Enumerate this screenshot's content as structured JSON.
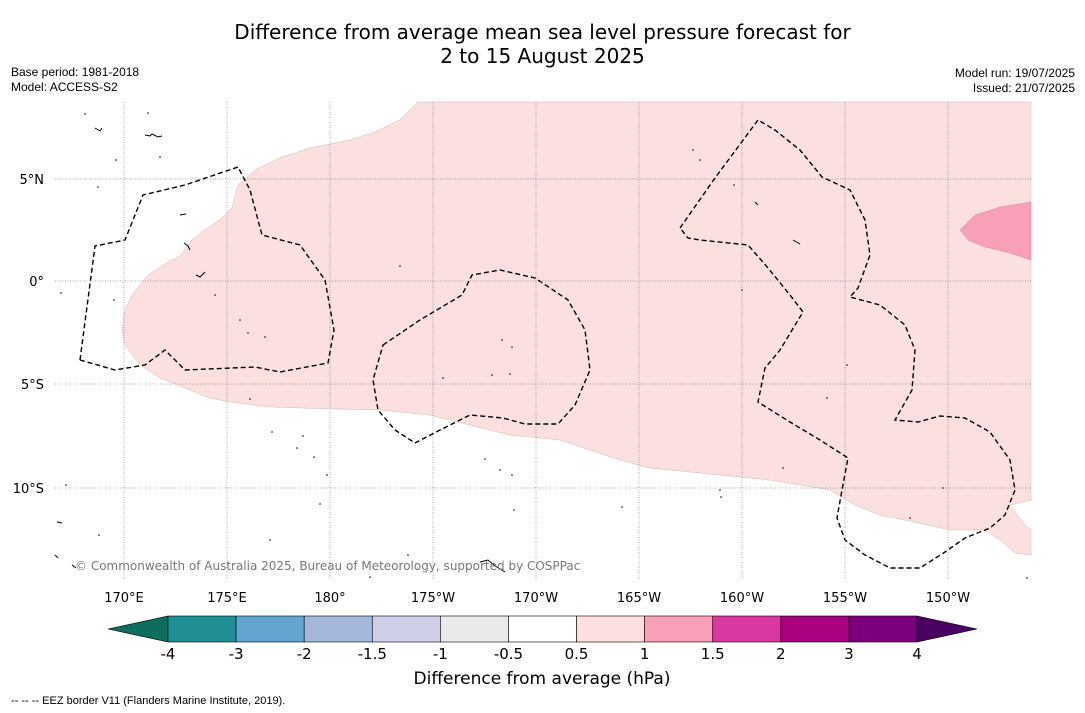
{
  "title": {
    "line1": "Difference from average mean sea level pressure forecast for",
    "line2": "2 to 15 August 2025"
  },
  "meta_left": {
    "base_period": "Base period: 1981-2018",
    "model": "Model: ACCESS-S2"
  },
  "meta_right": {
    "model_run": "Model run: 19/07/2025",
    "issued": "Issued: 21/07/2025"
  },
  "map": {
    "lat_labels": [
      "5°N",
      "0°",
      "5°S",
      "10°S"
    ],
    "lon_labels": [
      "170°E",
      "175°E",
      "180°",
      "175°W",
      "170°W",
      "165°W",
      "160°W",
      "155°W",
      "150°W"
    ],
    "copyright": "© Commonwealth of Australia 2025, Bureau of Meteorology, supported by COSPPac",
    "colors": {
      "anomaly_0_5_to_1": "#fce0df",
      "anomaly_1_to_1_5": "#f8a0b8",
      "eez_border": "#000000",
      "gridline": "#555555"
    }
  },
  "colorbar": {
    "title": "Difference from average (hPa)",
    "tick_labels": [
      "-4",
      "-3",
      "-2",
      "-1.5",
      "-1",
      "-0.5",
      "0.5",
      "1",
      "1.5",
      "2",
      "3",
      "4"
    ],
    "colors": [
      "#0e6d5e",
      "#1f8f95",
      "#62a5d0",
      "#a5b8dc",
      "#cfcfe8",
      "#eaeaea",
      "#ffffff",
      "#fce0df",
      "#f8a0b8",
      "#d838a0",
      "#a8007e",
      "#7a007e",
      "#4a0062"
    ]
  },
  "footnote": "--  --  -- EEZ border V11 (Flanders Marine Institute, 2019)."
}
